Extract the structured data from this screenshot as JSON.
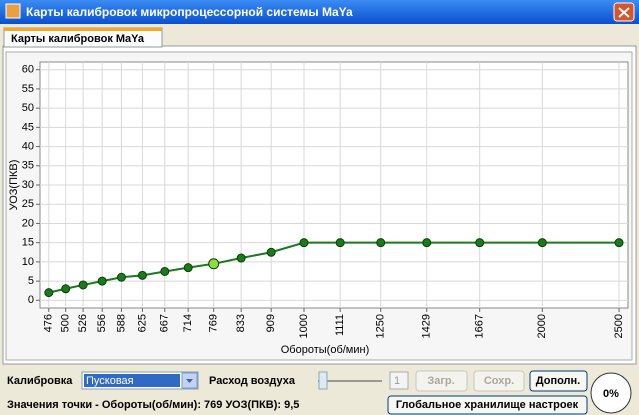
{
  "window": {
    "title": "Карты калибровок микропроцессорной системы MaYa",
    "tab": "Карты калибровок MaYa"
  },
  "chart_data": {
    "type": "line",
    "x_label": "Обороты(об/мин)",
    "y_label": "УОЗ(ПКВ)",
    "x": [
      476,
      500,
      526,
      556,
      588,
      625,
      667,
      714,
      769,
      833,
      909,
      1000,
      1111,
      1250,
      1429,
      1667,
      2000,
      2500
    ],
    "series": [
      {
        "color": "#1b7a1b",
        "values": [
          2,
          3,
          4,
          5,
          6,
          6.5,
          7.5,
          8.5,
          9.5,
          11,
          12.5,
          15,
          15,
          15,
          15,
          15,
          15,
          15
        ]
      }
    ],
    "selected_point": 8,
    "x_log": true,
    "xlim": [
      464,
      2566
    ],
    "xticks": [
      476,
      500,
      526,
      556,
      588,
      625,
      667,
      714,
      769,
      833,
      909,
      1000,
      1111,
      1250,
      1429,
      1667,
      2000,
      2500
    ],
    "ylim": [
      -2,
      62
    ],
    "yticks": [
      0,
      5,
      10,
      15,
      20,
      25,
      30,
      35,
      40,
      45,
      50,
      55,
      60
    ],
    "grid": true
  },
  "controls": {
    "calibration_label": "Калибровка",
    "calibration_value": "Пусковая",
    "air_label": "Расход воздуха",
    "air_input": "1",
    "load_button": "Загр.",
    "save_button": "Сохр.",
    "more_button": "Дополн.",
    "progress": "0%",
    "status": "Значения точки - Обороты(об/мин): 769   УОЗ(ПКВ): 9,5",
    "global_button": "Глобальное хранилище настроек"
  }
}
